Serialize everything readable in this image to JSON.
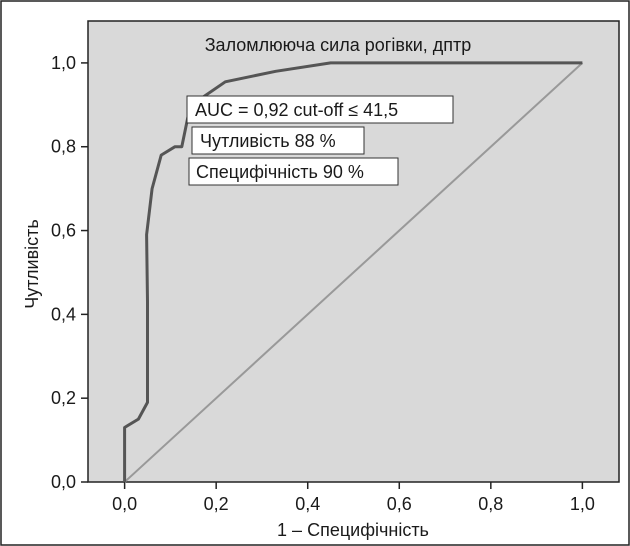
{
  "chart_data": {
    "type": "line",
    "title": "Заломлююча сила рогівки, дптр",
    "xlabel": "1 – Специфічність",
    "ylabel": "Чутливість",
    "xlim": [
      -0.08,
      1.08
    ],
    "ylim": [
      0.0,
      1.1
    ],
    "x_ticks": [
      0.0,
      0.2,
      0.4,
      0.6,
      0.8,
      1.0
    ],
    "x_tick_labels": [
      "0,0",
      "0,2",
      "0,4",
      "0,6",
      "0,8",
      "1,0"
    ],
    "y_ticks": [
      0.0,
      0.2,
      0.4,
      0.6,
      0.8,
      1.0
    ],
    "y_tick_labels": [
      "0,0",
      "0,2",
      "0,4",
      "0,6",
      "0,8",
      "1,0"
    ],
    "grid": false,
    "series": [
      {
        "role": "roc-curve",
        "color": "#555555",
        "x": [
          0.0,
          0.0,
          0.03,
          0.05,
          0.05,
          0.048,
          0.06,
          0.08,
          0.11,
          0.125,
          0.14,
          0.16,
          0.22,
          0.33,
          0.45,
          1.0
        ],
        "y": [
          0.0,
          0.13,
          0.15,
          0.19,
          0.43,
          0.59,
          0.7,
          0.78,
          0.8,
          0.8,
          0.88,
          0.91,
          0.955,
          0.98,
          1.0,
          1.0
        ]
      },
      {
        "role": "reference-diagonal",
        "color": "#999999",
        "x": [
          0.0,
          1.0
        ],
        "y": [
          0.0,
          1.0
        ]
      }
    ],
    "annotations": [
      {
        "text": "AUC = 0,92 cut-off ≤ 41,5"
      },
      {
        "text": "Чутливість 88 %"
      },
      {
        "text": "Специфічність 90 %"
      }
    ],
    "colors": {
      "plot_background": "#d9d9d9",
      "frame": "#222222",
      "annotation_box": "#ffffff"
    }
  }
}
